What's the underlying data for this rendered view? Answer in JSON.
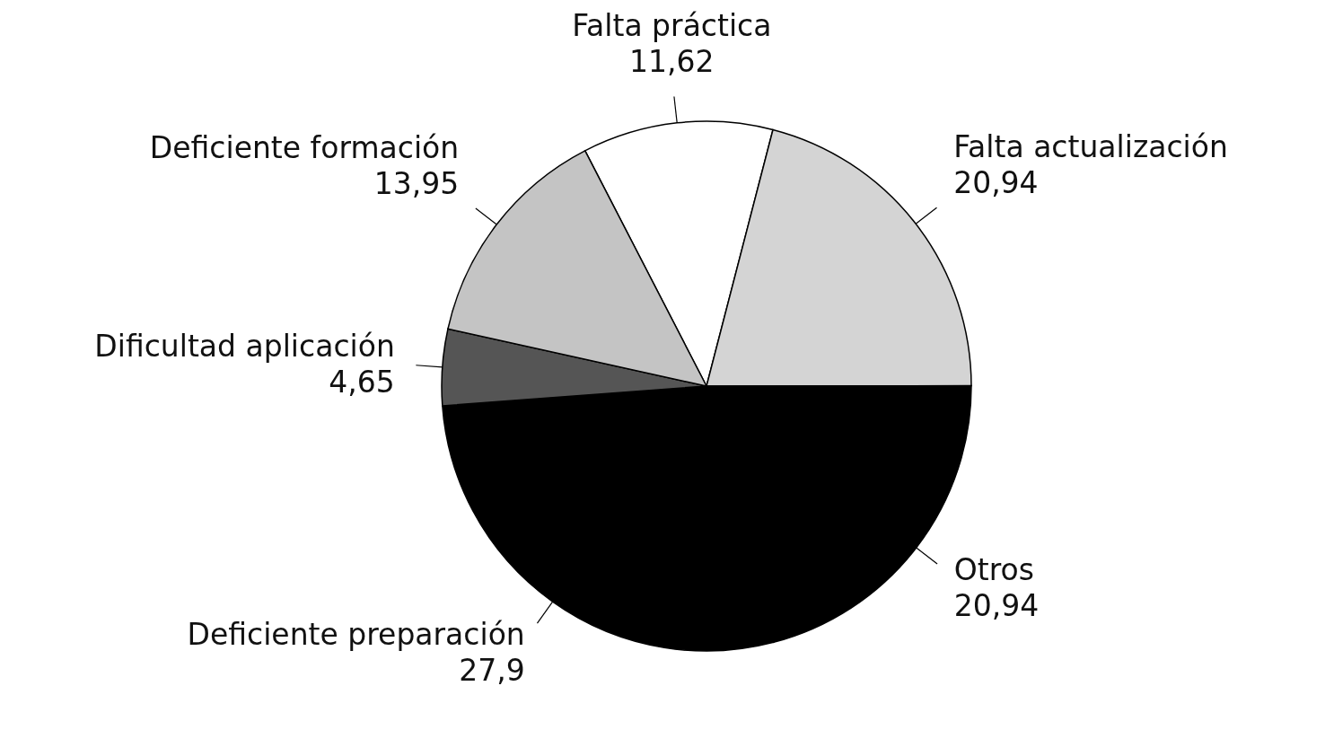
{
  "chart_data": {
    "type": "pie",
    "categories": [
      "Falta práctica",
      "Falta actualización",
      "Otros",
      "Deficiente preparación",
      "Dificultad aplicación",
      "Deficiente formación"
    ],
    "values": [
      11.62,
      20.94,
      20.94,
      27.9,
      4.65,
      13.95
    ],
    "colors": [
      "#ffffff",
      "#d4d4d4",
      "#000000",
      "#000000",
      "#555555",
      "#c4c4c4"
    ],
    "value_labels": [
      "11,62",
      "20,94",
      "20,94",
      "27,9",
      "4,65",
      "13,95"
    ]
  }
}
